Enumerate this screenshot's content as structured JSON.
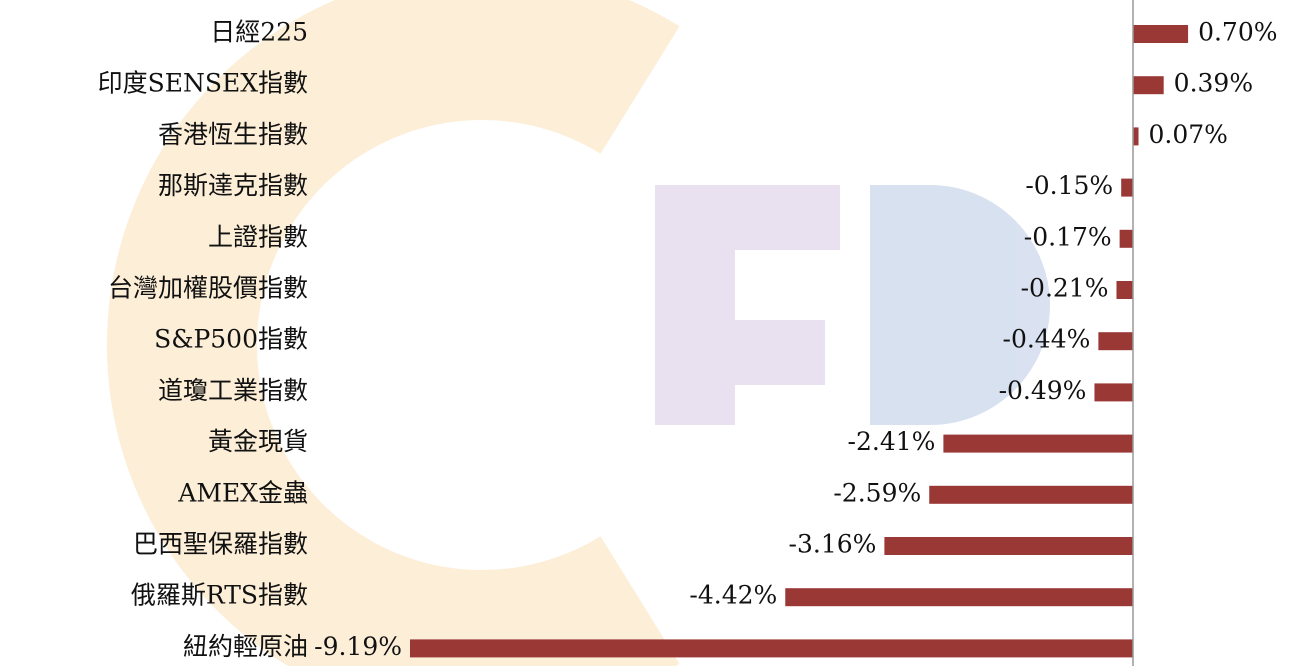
{
  "chart_data": {
    "type": "bar",
    "orientation": "horizontal",
    "categories": [
      "日經225",
      "印度SENSEX指數",
      "香港恆生指數",
      "那斯達克指數",
      "上證指數",
      "台灣加權股價指數",
      "S&P500指數",
      "道瓊工業指數",
      "黃金現貨",
      "AMEX金蟲",
      "巴西聖保羅指數",
      "俄羅斯RTS指數",
      "紐約輕原油"
    ],
    "values": [
      0.7,
      0.39,
      0.07,
      -0.15,
      -0.17,
      -0.21,
      -0.44,
      -0.49,
      -2.41,
      -2.59,
      -3.16,
      -4.42,
      -9.19
    ],
    "value_labels": [
      "0.70%",
      "0.39%",
      "0.07%",
      "-0.15%",
      "-0.17%",
      "-0.21%",
      "-0.44%",
      "-0.49%",
      "-2.41%",
      "-2.59%",
      "-3.16%",
      "-4.42%",
      "-9.19%"
    ],
    "color": "#993835"
  }
}
